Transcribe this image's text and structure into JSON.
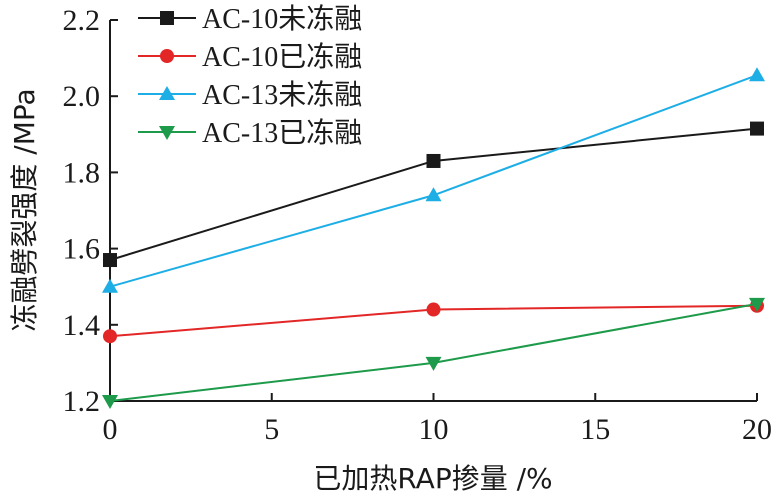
{
  "chart_data": {
    "type": "line",
    "title": "",
    "xlabel": "已加热RAP掺量 /%",
    "ylabel": "冻融劈裂强度 /MPa",
    "xlim": [
      0,
      20
    ],
    "ylim": [
      1.2,
      2.2
    ],
    "x_ticks": [
      "0",
      "5",
      "10",
      "15",
      "20"
    ],
    "y_ticks": [
      "1.2",
      "1.4",
      "1.6",
      "1.8",
      "2.0",
      "2.2"
    ],
    "grid": false,
    "legend_position": "top-left",
    "x": [
      0,
      10,
      20
    ],
    "series": [
      {
        "name": "AC-10未冻融",
        "values": [
          1.57,
          1.83,
          1.915
        ],
        "color": "#1a1a1a",
        "marker": "square"
      },
      {
        "name": "AC-10已冻融",
        "values": [
          1.37,
          1.44,
          1.45
        ],
        "color": "#e32626",
        "marker": "circle"
      },
      {
        "name": "AC-13未冻融",
        "values": [
          1.5,
          1.74,
          2.055
        ],
        "color": "#1eaee6",
        "marker": "triangle-up"
      },
      {
        "name": "AC-13已冻融",
        "values": [
          1.2,
          1.3,
          1.455
        ],
        "color": "#1d9a4a",
        "marker": "triangle-down"
      }
    ]
  }
}
